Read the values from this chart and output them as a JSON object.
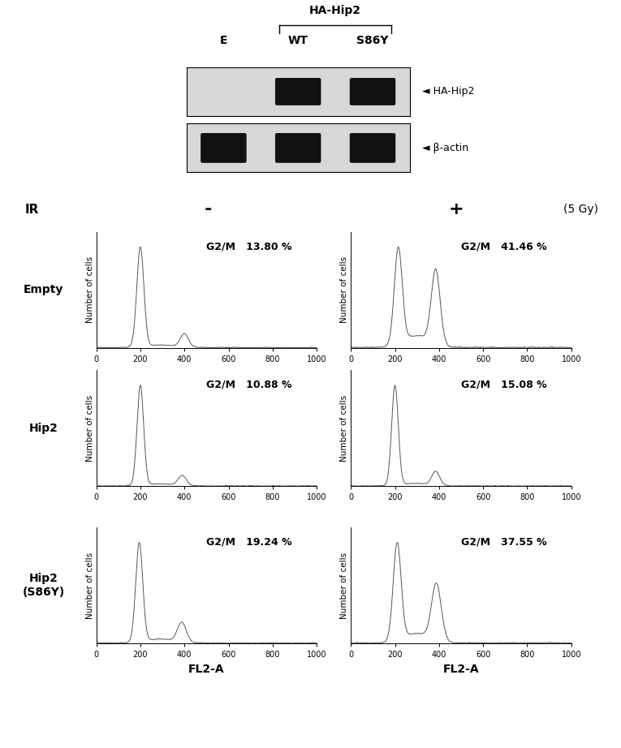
{
  "western_blot": {
    "label_e": "E",
    "label_wt": "WT",
    "label_s86y": "S86Y",
    "bracket_label": "HA-Hip2",
    "band1_label": "HA-Hip2",
    "band2_label": "β-actin"
  },
  "ir_label": "IR",
  "ir_minus": "-",
  "ir_plus": "+",
  "ir_gy": "(5 Gy)",
  "row_labels": [
    "Empty",
    "Hip2",
    "Hip2\n(S86Y)"
  ],
  "g2m_values": [
    [
      "13.80",
      "41.46"
    ],
    [
      "10.88",
      "15.08"
    ],
    [
      "19.24",
      "37.55"
    ]
  ],
  "xlabel": "FL2-A",
  "ylabel": "Number of cells",
  "bg_color": "#ffffff",
  "line_color": "#555555",
  "text_color": "#000000",
  "wb_bg": "#d8d8d8",
  "wb_band_color": "#111111"
}
